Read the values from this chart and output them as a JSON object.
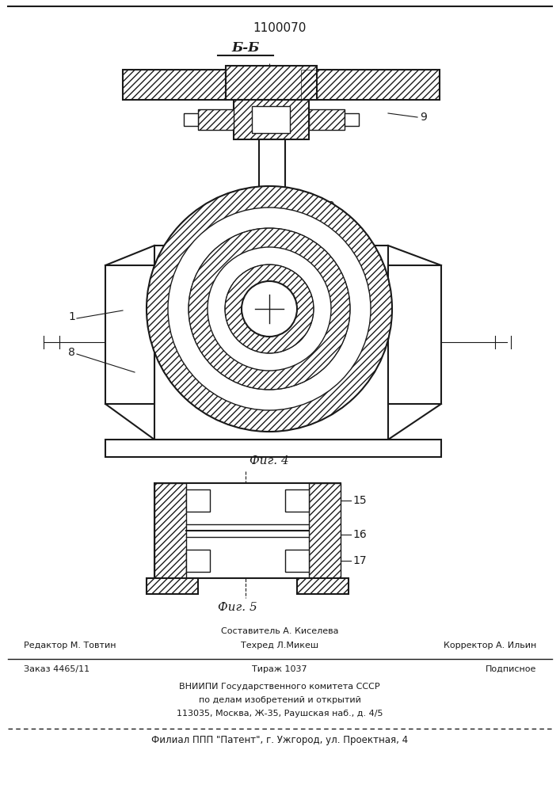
{
  "patent_number": "1100070",
  "section_label": "Б-Б",
  "fig4_label": "Фиг. 4",
  "fig5_label": "Фиг. 5",
  "bg_color": "#ffffff",
  "line_color": "#1a1a1a",
  "footer": {
    "line1_above": "Составитель А. Киселева",
    "line1_left": "Редактор М. Товтин",
    "line1_mid": "Техред Л.Микеш",
    "line1_right": "Корректор А. Ильин",
    "line2_left": "Заказ 4465/11",
    "line2_mid": "Тираж 1037",
    "line2_right": "Подписное",
    "line3": "ВНИИПИ Государственного комитета СССР",
    "line4": "по делам изобретений и открытий",
    "line5": "113035, Москва, Ж-35, Раушская наб., д. 4/5",
    "line6": "Филиал ППП \"Патент\", г. Ужгород, ул. Проектная, 4"
  }
}
